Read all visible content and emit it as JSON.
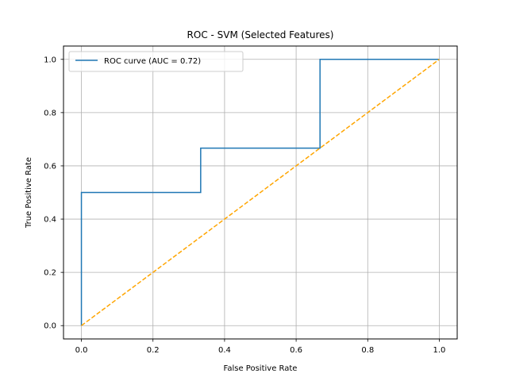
{
  "chart_data": {
    "type": "line",
    "title": "ROC - SVM (Selected Features)",
    "xlabel": "False Positive Rate",
    "ylabel": "True Positive Rate",
    "xlim": [
      -0.05,
      1.05
    ],
    "ylim": [
      -0.05,
      1.05
    ],
    "xticks": [
      0.0,
      0.2,
      0.4,
      0.6,
      0.8,
      1.0
    ],
    "yticks": [
      0.0,
      0.2,
      0.4,
      0.6,
      0.8,
      1.0
    ],
    "xtick_labels": [
      "0.0",
      "0.2",
      "0.4",
      "0.6",
      "0.8",
      "1.0"
    ],
    "ytick_labels": [
      "0.0",
      "0.2",
      "0.4",
      "0.6",
      "0.8",
      "1.0"
    ],
    "grid": true,
    "legend_position": "top-left",
    "series": [
      {
        "name": "ROC curve (AUC = 0.72)",
        "color": "#1f77b4",
        "style": "solid",
        "x": [
          0.0,
          0.0,
          0.3333,
          0.3333,
          0.6667,
          0.6667,
          1.0
        ],
        "y": [
          0.0,
          0.5,
          0.5,
          0.6667,
          0.6667,
          1.0,
          1.0
        ]
      },
      {
        "color": "#ffa500",
        "style": "dashed",
        "x": [
          0.0,
          1.0
        ],
        "y": [
          0.0,
          1.0
        ]
      }
    ]
  }
}
